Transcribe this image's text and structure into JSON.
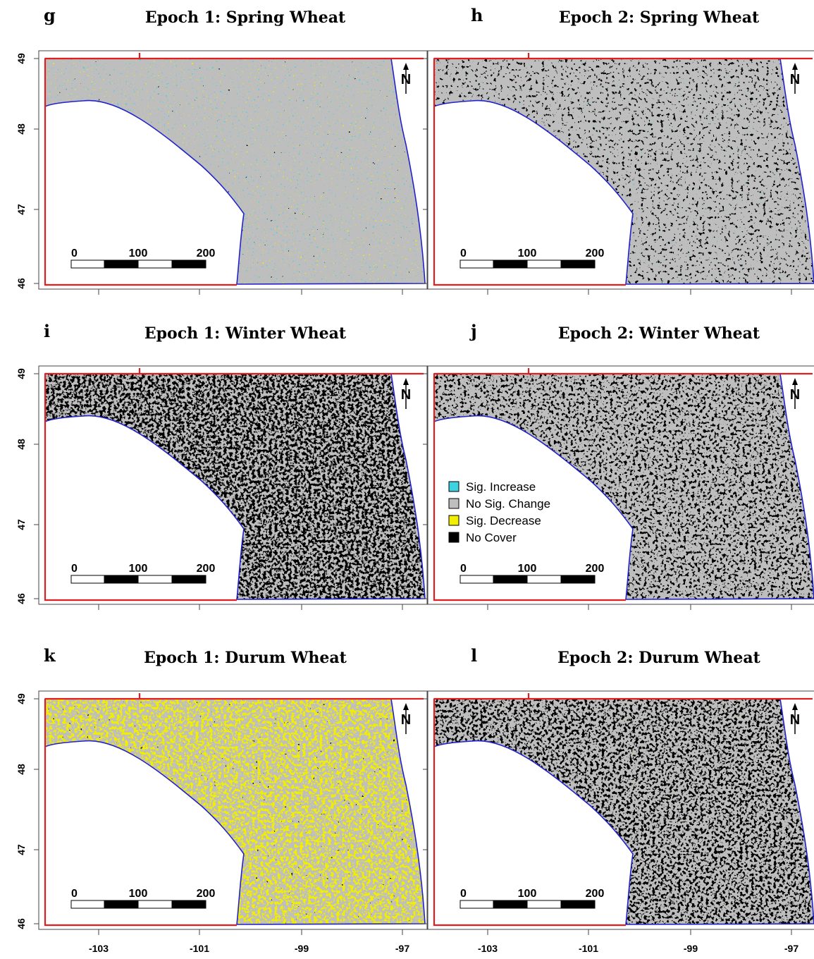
{
  "panels": [
    {
      "letter": "g",
      "title": "Epoch 1: Spring Wheat"
    },
    {
      "letter": "h",
      "title": "Epoch 2: Spring Wheat"
    },
    {
      "letter": "i",
      "title": "Epoch 1: Winter Wheat"
    },
    {
      "letter": "j",
      "title": "Epoch 2: Winter Wheat"
    },
    {
      "letter": "k",
      "title": "Epoch 1: Durum Wheat"
    },
    {
      "letter": "l",
      "title": "Epoch 2: Durum Wheat"
    }
  ],
  "y_axis_ticks": [
    "49",
    "48",
    "47",
    "46"
  ],
  "x_axis_ticks": [
    "-103",
    "-101",
    "-99",
    "-97"
  ],
  "scale_bar": [
    "0",
    "100",
    "200"
  ],
  "north": "N",
  "legend": [
    {
      "label": "Sig. Increase",
      "color": "#3cd2e0"
    },
    {
      "label": "No Sig. Change",
      "color": "#bebebe"
    },
    {
      "label": "Sig. Decrease",
      "color": "#f2ee00"
    },
    {
      "label": "No Cover",
      "color": "#000000"
    }
  ]
}
